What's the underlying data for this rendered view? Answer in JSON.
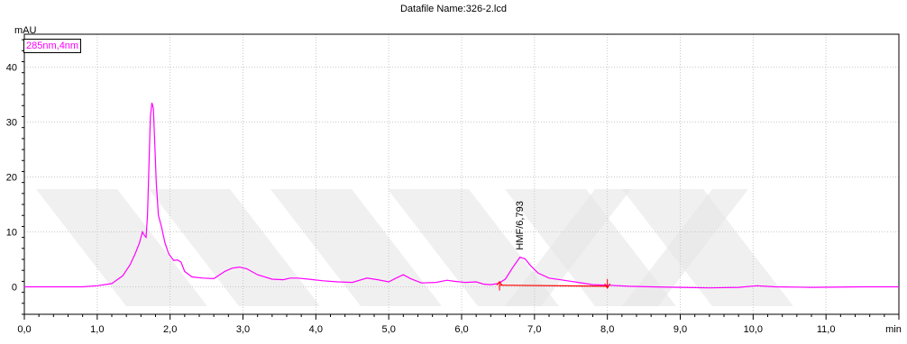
{
  "title": "Datafile Name:326-2.lcd",
  "legend": "285nm,4nm",
  "colors": {
    "trace": "#ff00ff",
    "baseline": "#ff0000",
    "grid": "#c8c8c8",
    "axis": "#000000",
    "watermark": "#e6e6e6"
  },
  "chart_data": {
    "type": "line",
    "title": "Datafile Name:326-2.lcd",
    "ylabel": "mAU",
    "xlabel": "min",
    "xlim": [
      0,
      12
    ],
    "ylim": [
      -5,
      46
    ],
    "grid": true,
    "legend_position": "top-left",
    "x_ticks": [
      "0,0",
      "1,0",
      "2,0",
      "3,0",
      "4,0",
      "5,0",
      "6,0",
      "7,0",
      "8,0",
      "9,0",
      "10,0",
      "11,0"
    ],
    "x_tick_values": [
      0,
      1,
      2,
      3,
      4,
      5,
      6,
      7,
      8,
      9,
      10,
      11
    ],
    "x_unit_label": "min",
    "y_ticks": [
      "0",
      "10",
      "20",
      "30",
      "40"
    ],
    "y_tick_values": [
      0,
      10,
      20,
      30,
      40
    ],
    "series": [
      {
        "name": "285nm,4nm",
        "x": [
          0.0,
          0.5,
          0.8,
          1.0,
          1.2,
          1.35,
          1.45,
          1.52,
          1.58,
          1.62,
          1.64,
          1.67,
          1.69,
          1.71,
          1.73,
          1.75,
          1.77,
          1.79,
          1.81,
          1.84,
          1.88,
          1.93,
          1.98,
          2.05,
          2.1,
          2.15,
          2.2,
          2.3,
          2.45,
          2.6,
          2.75,
          2.85,
          2.95,
          3.05,
          3.2,
          3.4,
          3.55,
          3.65,
          3.75,
          3.9,
          4.1,
          4.3,
          4.5,
          4.7,
          4.85,
          5.0,
          5.1,
          5.2,
          5.3,
          5.45,
          5.65,
          5.8,
          5.9,
          6.05,
          6.2,
          6.3,
          6.4,
          6.5,
          6.6,
          6.7,
          6.8,
          6.87,
          6.95,
          7.05,
          7.2,
          7.4,
          7.6,
          7.8,
          8.0,
          8.3,
          8.6,
          9.0,
          9.4,
          9.8,
          10.05,
          10.3,
          10.8,
          11.5,
          12.0
        ],
        "values": [
          0.0,
          0.0,
          0.0,
          0.2,
          0.6,
          2.0,
          4.0,
          6.0,
          8.0,
          10.0,
          9.5,
          9.0,
          13.0,
          22.0,
          31.0,
          33.5,
          32.5,
          26.0,
          19.0,
          13.0,
          11.0,
          8.0,
          6.0,
          4.8,
          4.9,
          4.5,
          2.8,
          1.8,
          1.6,
          1.5,
          2.8,
          3.4,
          3.6,
          3.3,
          2.2,
          1.4,
          1.3,
          1.6,
          1.6,
          1.4,
          1.1,
          0.9,
          0.8,
          1.6,
          1.3,
          0.9,
          1.6,
          2.2,
          1.5,
          0.7,
          0.8,
          1.2,
          1.0,
          0.8,
          0.9,
          0.5,
          0.4,
          0.6,
          1.4,
          3.5,
          5.4,
          5.1,
          3.8,
          2.5,
          1.6,
          1.2,
          0.8,
          0.4,
          0.3,
          0.1,
          0.0,
          -0.1,
          -0.2,
          -0.1,
          0.2,
          0.0,
          -0.1,
          0.0,
          0.0
        ]
      }
    ],
    "annotations": [
      {
        "text": "HMF/6,793",
        "x": 6.793,
        "y": 5.4
      }
    ],
    "integration_baseline": {
      "x": [
        6.52,
        8.0
      ],
      "y": [
        0.3,
        0.1
      ]
    }
  }
}
